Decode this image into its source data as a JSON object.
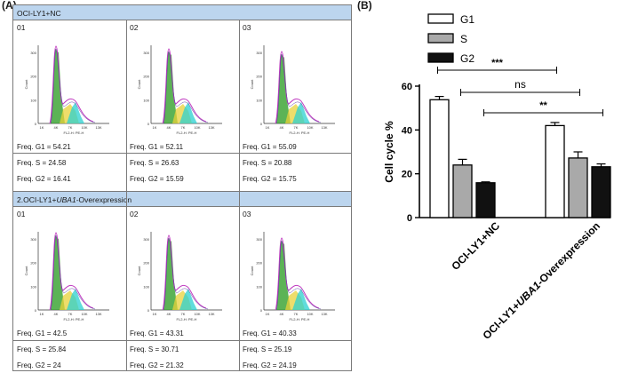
{
  "panel_a": {
    "label": "(A)",
    "group1": {
      "header": "OCI-LY1+NC",
      "samples": [
        {
          "id": "01",
          "g1": "Freq. G1    = 54.21",
          "s": "Freq. S = 24.58",
          "g2": "Freq. G2    = 16.41"
        },
        {
          "id": "02",
          "g1": "Freq. G1    = 52.11",
          "s": "Freq. S = 26.63",
          "g2": "Freq. G2    = 15.59"
        },
        {
          "id": "03",
          "g1": "Freq. G1    = 55.09",
          "s": "Freq. S = 20.88",
          "g2": "Freq. G2    = 15.75"
        }
      ]
    },
    "group2": {
      "header_prefix": "2.OCI-LY1+",
      "header_gene": "UBA1",
      "header_suffix": "-Overexpression",
      "samples": [
        {
          "id": "01",
          "g1": "Freq. G1    = 42.5",
          "s": "Freq. S = 25.84",
          "g2": "Freq. G2    = 24"
        },
        {
          "id": "02",
          "g1": "Freq. G1    = 43.31",
          "s": "Freq. S = 30.71",
          "g2": "Freq. G2    = 21.32"
        },
        {
          "id": "03",
          "g1": "Freq. G1    = 40.33",
          "s": "Freq. S = 25.19",
          "g2": "Freq. G2    = 24.19"
        }
      ]
    },
    "hist_axis": {
      "ylabel": "Count",
      "xlabel": "FL2-H: PE-H",
      "y_ticks": [
        "0",
        "100",
        "200",
        "300"
      ],
      "x_ticks": [
        "1K",
        "4K",
        "7K",
        "10K",
        "13K"
      ]
    },
    "colors": {
      "g1": "#33a02c",
      "s": "#e8d23a",
      "g2": "#2bd0d0",
      "fit": "#c03ac0",
      "header_bg": "#bcd5ee"
    }
  },
  "chart_data": {
    "label": "(B)",
    "type": "bar",
    "categories": [
      "OCI-LY1+NC",
      "OCI-LY1+UBA1-Overexpression"
    ],
    "category_parts": [
      {
        "prefix": "OCI-LY1+NC",
        "gene": "",
        "suffix": ""
      },
      {
        "prefix": "OCI-LY1+",
        "gene": "UBA1",
        "suffix": "-Overexpression"
      }
    ],
    "series": [
      {
        "name": "G1",
        "values": [
          53.8,
          42.0
        ],
        "errors": [
          1.5,
          1.4
        ],
        "color": "#ffffff"
      },
      {
        "name": "S",
        "values": [
          24.0,
          27.2
        ],
        "errors": [
          2.6,
          2.8
        ],
        "color": "#a9a9a9"
      },
      {
        "name": "G2",
        "values": [
          15.9,
          23.2
        ],
        "errors": [
          0.4,
          1.3
        ],
        "color": "#111111"
      }
    ],
    "ylabel": "Cell cycle %",
    "ylim": [
      0,
      60
    ],
    "yticks": [
      0,
      20,
      40,
      60
    ],
    "significance": [
      {
        "label": "***",
        "from_series": "G1",
        "from_cat": 0,
        "to_series": "G1",
        "to_cat": 1
      },
      {
        "label": "ns",
        "from_series": "S",
        "from_cat": 0,
        "to_series": "S",
        "to_cat": 1
      },
      {
        "label": "**",
        "from_series": "G2",
        "from_cat": 0,
        "to_series": "G2",
        "to_cat": 1
      }
    ],
    "legend": "top-left",
    "grid": false
  }
}
